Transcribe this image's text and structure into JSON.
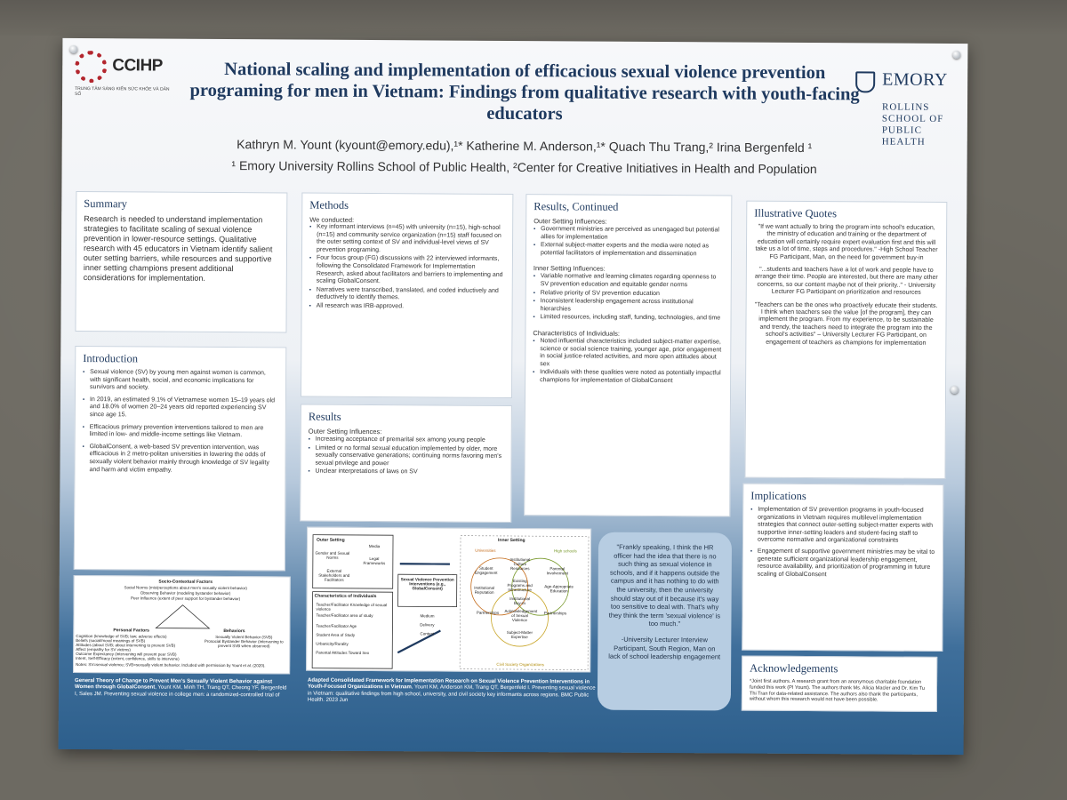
{
  "header": {
    "logo_left_brand": "CCIHP",
    "logo_left_sub": "TRUNG TÂM SÁNG KIẾN SỨC KHỎE VÀ DÂN SỐ",
    "logo_right_name": "EMORY",
    "logo_right_school": "ROLLINS SCHOOL OF PUBLIC HEALTH",
    "title": "National scaling and implementation of efficacious sexual violence prevention programing for men in Vietnam: Findings from qualitative research with youth-facing educators",
    "authors": "Kathryn M. Yount (kyount@emory.edu),¹* Katherine M. Anderson,¹* Quach Thu Trang,² Irina Bergenfeld ¹",
    "affiliations": "¹ Emory University Rollins School of Public Health, ²Center for Creative Initiatives in Health and Population"
  },
  "summary": {
    "heading": "Summary",
    "text": "Research is needed to understand implementation strategies to facilitate scaling of sexual violence prevention in lower-resource settings. Qualitative research with 45 educators in Vietnam identify salient outer setting barriers, while resources and supportive inner setting champions present additional considerations for implementation."
  },
  "introduction": {
    "heading": "Introduction",
    "items": [
      "Sexual violence (SV) by young men against women is common, with significant health, social, and economic implications for survivors and society.",
      "In 2019, an estimated 9.1% of Vietnamese women 15–19 years old and 18.0% of women 20–24 years old reported experiencing SV since age 15.",
      "Efficacious primary prevention interventions tailored to men are limited in low- and middle-income settings like Vietnam.",
      "GlobalConsent, a web-based SV prevention intervention, was efficacious in 2 metro-politan universities in lowering the odds of sexually violent behavior mainly through knowledge of SV legality and harm and victim empathy."
    ]
  },
  "methods": {
    "heading": "Methods",
    "lead": "We conducted:",
    "items": [
      "Key informant interviews (n=45) with university (n=15), high-school (n=15) and community service organization (n=15) staff focused on the outer setting context of SV and individual-level views of SV prevention programing.",
      "Four focus group (FG) discussions with 22 interviewed informants, following the Consolidated Framework for Implementation Research, asked about facilitators and barriers to implementing and scaling GlobalConsent.",
      "Narratives were transcribed, translated, and coded inductively and deductively to identify themes.",
      "All research was IRB-approved."
    ]
  },
  "results": {
    "heading": "Results",
    "sub": "Outer Setting Influences:",
    "items": [
      "Increasing acceptance of premarital sex among young people",
      "Limited or no formal sexual education implemented by older, more sexually conservative generations; continuing norms favoring men's sexual privilege and power",
      "Unclear interpretations of laws on SV"
    ]
  },
  "results_continued": {
    "heading": "Results, Continued",
    "groups": [
      {
        "sub": "Outer Setting Influences:",
        "items": [
          "Government ministries are perceived as unengaged but potential allies for implementation",
          "External subject-matter experts and the media were noted as potential facilitators of implementation and dissemination"
        ]
      },
      {
        "sub": "Inner Setting Influences:",
        "items": [
          "Variable normative and learning climates regarding openness to SV prevention education and equitable gender norms",
          "Relative priority of SV prevention education",
          "Inconsistent leadership engagement across institutional hierarchies",
          "Limited resources, including staff, funding, technologies, and time"
        ]
      },
      {
        "sub": "Characteristics of Individuals:",
        "items": [
          "Noted influential characteristics included subject-matter expertise, science or social science training, younger age, prior engagement in social justice-related activities, and more open attitudes about sex",
          "Individuals with these qualities were noted as potentially impactful champions for implementation of GlobalConsent"
        ]
      }
    ]
  },
  "quotes": {
    "heading": "Illustrative Quotes",
    "items": [
      "\"If we want actually to bring the program into school's education, the ministry of education and training or the department of education will certainly require expert evaluation first and this will take us a lot of time, steps and procedures.\" -High School Teacher FG Participant, Man, on the need for government buy-in",
      "\"...students and teachers have a lot of work and people have to arrange their time. People are interested, but there are many other concerns, so our content maybe not of their priority..\" - University Lecturer FG Participant on prioritization and resources",
      "\"Teachers can be the ones who proactively educate their students. I think when teachers see the value [of the program], they can implement the program. From my experience, to be sustainable and trendy, the teachers need to integrate the program into the school's activities\" – University Lecturer FG Participant, on engagement of teachers as champions for implementation"
    ]
  },
  "implications": {
    "heading": "Implications",
    "items": [
      "Implementation of SV prevention programs in youth-focused organizations in Vietnam requires multilevel implementation strategies that connect outer-setting subject-matter experts with supportive inner-setting leaders and student-facing staff to overcome normative and organizational constraints",
      "Engagement of supportive government ministries may be vital to generate sufficient organizational leadership engagement, resource availability, and prioritization of programming in future scaling of GlobalConsent"
    ]
  },
  "acknowledgements": {
    "heading": "Acknowledgements",
    "text": "*Joint first authors. A research grant from an anonymous charitable foundation funded this work (PI Yount). The authors thank Ms. Alicia Macler and Dr. Kim Tu Thi Tran for data-related assistance. The authors also thank the participants, without whom this research would not have been possible."
  },
  "theory": {
    "top_title": "Socio-Contextual Factors",
    "top_lines": [
      "Social Norms (mis/perceptions about men's sexually violent behavior)",
      "Observing Behavior (modeling bystander behavior)",
      "Peer Influence (extent of peer support for bystander behavior)"
    ],
    "left_title": "Personal Factors",
    "left_lines": [
      "Cognition (knowledge of SVB; law; adverse effects)",
      "Beliefs (social/moral meanings of SVB)",
      "Attitudes (about SVB; about intervening to prevent SVB)",
      "Affect (empathy for SV victims)",
      "Outcome Expectancy (intervening will prevent peer SVB)",
      "Intent, Self-Efficacy (extent, confidence, skills to intervene)"
    ],
    "right_title": "Behaviors",
    "right_lines": [
      "Sexually Violent Behavior (SVB)",
      "Prosocial Bystander Behavior (intervening to prevent SVB when observed)"
    ],
    "note": "Notes: SV=sexual violence; SVB=sexually violent behavior. Included with permission by Yount et al. (2020).",
    "caption_bold": "General Theory of Change to Prevent Men's Sexually Violent Behavior against Women through GlobalConsent",
    "caption_rest": ", Yount KM, Minh TH, Trang QT, Cheong YF, Bergenfeld I, Sales JM. Preventing sexual violence in college men: a randomized-controlled trial of"
  },
  "framework": {
    "outer_title": "Outer Setting",
    "outer_items": [
      "Gender and Sexual Norms",
      "Media",
      "Legal Frameworks",
      "External Stakeholders and Facilitators"
    ],
    "inner_title": "Inner Setting",
    "inner_orgs": [
      "Universities",
      "High schools",
      "Civil Society Organizations"
    ],
    "inner_items": [
      "Student Engagement",
      "Institutional Culture Resources",
      "Parental Involvement",
      "Institutional Reputation",
      "Existing Programs and Infrastructure",
      "Age-Appropriate Education",
      "Institutional Buy-In",
      "Partnerships",
      "Acknowledgement of Sexual Violence",
      "Partnerships",
      "Subject-Matter Expertise"
    ],
    "center_title": "Sexual Violence Prevention Interventions (e.g., GlobalConsent)",
    "center_items": [
      "Medium",
      "Delivery",
      "Content"
    ],
    "indiv_title": "Characteristics of Individuals",
    "indiv_items": [
      "Teacher/Facilitator Knowledge of sexual violence",
      "Teacher/Facilitator area of study",
      "Teacher/Facilitator Age",
      "Student Area of Study",
      "Urbanicity/Rurality",
      "Parental Attitudes Toward Sex"
    ],
    "caption_bold": "Adapted Consolidated Framework for Implementation Research on Sexual Violence Prevention Interventions in Youth-Focused Organizations in Vietnam",
    "caption_rest": ", Yount KM, Anderson KM, Trang QT, Bergenfeld I. Preventing sexual violence in Vietnam: qualitative findings from high school, university, and civil society key informants across regions. BMC Public Health. 2023 Jun"
  },
  "callout": {
    "quote": "\"Frankly speaking, I think the HR officer had the idea that there is no such thing as sexual violence in schools, and if it happens outside the campus and it has nothing to do with the university, then the university should stay out of it because it's way too sensitive to deal with. That's why they think the term 'sexual violence' is too much.\"",
    "attribution": "-University Lecturer Interview Participant, South Region, Man on lack of school leadership engagement"
  }
}
